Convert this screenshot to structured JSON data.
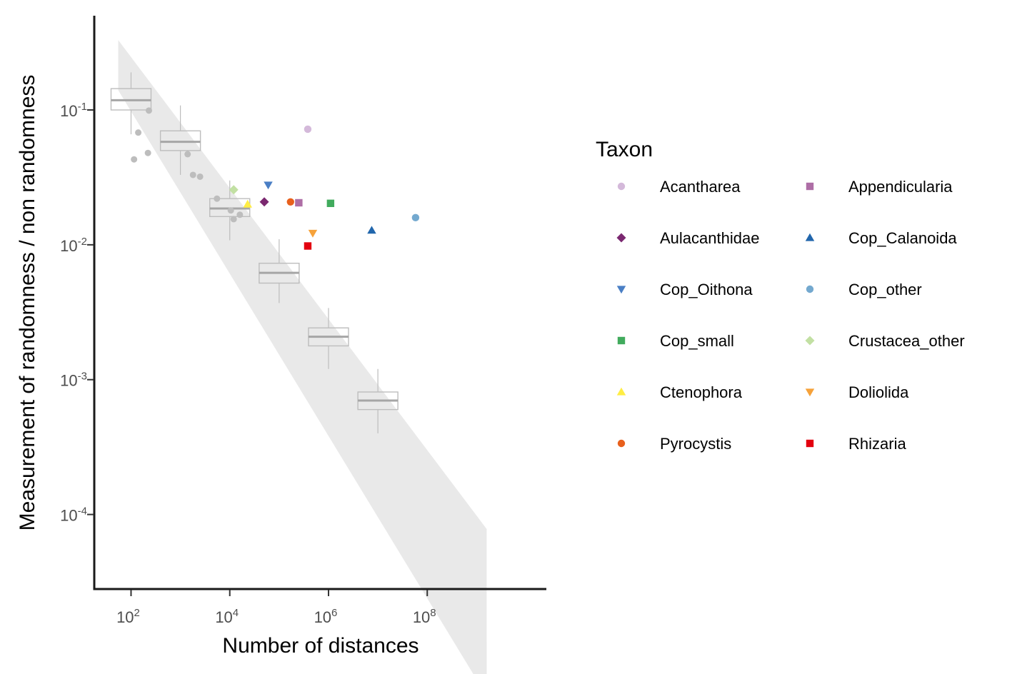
{
  "chart_data": {
    "type": "scatter",
    "xlabel": "Number of distances",
    "ylabel": "Measurement of randomness / non randomness",
    "x_scale": "log10",
    "y_scale": "log10",
    "xlim": [
      18,
      25000000000
    ],
    "ylim": [
      2.8e-05,
      0.5
    ],
    "x_ticks": [
      {
        "value": 100,
        "base": "10",
        "exp": "2"
      },
      {
        "value": 10000,
        "base": "10",
        "exp": "4"
      },
      {
        "value": 1000000,
        "base": "10",
        "exp": "6"
      },
      {
        "value": 100000000,
        "base": "10",
        "exp": "8"
      }
    ],
    "y_ticks": [
      {
        "value": 0.1,
        "base": "10",
        "exp": "-1"
      },
      {
        "value": 0.01,
        "base": "10",
        "exp": "-2"
      },
      {
        "value": 0.001,
        "base": "10",
        "exp": "-3"
      },
      {
        "value": 0.0001,
        "base": "10",
        "exp": "-4"
      }
    ],
    "grid": false,
    "ribbon": {
      "color": "#e5e5e5",
      "x": [
        55,
        1600000000
      ],
      "upper": [
        0.33,
        7.8e-05
      ],
      "lower": [
        0.14,
        4.5e-06
      ]
    },
    "boxplots": {
      "color": "#bdbdbd",
      "median_color": "#a6a6a6",
      "boxes": [
        {
          "x": 100,
          "whisker_low": 0.066,
          "q1": 0.1,
          "median": 0.118,
          "q3": 0.144,
          "whisker_high": 0.19
        },
        {
          "x": 1000,
          "whisker_low": 0.033,
          "q1": 0.05,
          "median": 0.058,
          "q3": 0.07,
          "whisker_high": 0.108
        },
        {
          "x": 10000,
          "whisker_low": 0.0108,
          "q1": 0.0162,
          "median": 0.0186,
          "q3": 0.022,
          "whisker_high": 0.03
        },
        {
          "x": 100000,
          "whisker_low": 0.0037,
          "q1": 0.0052,
          "median": 0.0062,
          "q3": 0.0073,
          "whisker_high": 0.011
        },
        {
          "x": 1000000,
          "whisker_low": 0.0012,
          "q1": 0.00178,
          "median": 0.00208,
          "q3": 0.00242,
          "whisker_high": 0.0034
        },
        {
          "x": 10000000,
          "whisker_low": 0.0004,
          "q1": 0.0006,
          "median": 0.0007,
          "q3": 0.00081,
          "whisker_high": 0.0012
        }
      ]
    },
    "grey_points": {
      "color": "#bdbdbd",
      "points": [
        {
          "x": 230,
          "y": 0.099
        },
        {
          "x": 140,
          "y": 0.068
        },
        {
          "x": 220,
          "y": 0.048
        },
        {
          "x": 115,
          "y": 0.043
        },
        {
          "x": 1400,
          "y": 0.047
        },
        {
          "x": 1800,
          "y": 0.033
        },
        {
          "x": 2500,
          "y": 0.032
        },
        {
          "x": 5500,
          "y": 0.022
        },
        {
          "x": 10500,
          "y": 0.018
        },
        {
          "x": 16000,
          "y": 0.0167
        },
        {
          "x": 12000,
          "y": 0.0155
        }
      ]
    },
    "series": [
      {
        "name": "Acantharea",
        "shape": "circle",
        "color": "#d4b9da",
        "x": 380000,
        "y": 0.072
      },
      {
        "name": "Appendicularia",
        "shape": "square",
        "color": "#ae6ea6",
        "x": 250000,
        "y": 0.0205
      },
      {
        "name": "Aulacanthidae",
        "shape": "diamond",
        "color": "#7b2870",
        "x": 50000,
        "y": 0.0208
      },
      {
        "name": "Cop_Calanoida",
        "shape": "triangle-up",
        "color": "#2166ac",
        "x": 7500000,
        "y": 0.0128
      },
      {
        "name": "Cop_Oithona",
        "shape": "triangle-down",
        "color": "#4a7fc5",
        "x": 60000,
        "y": 0.0278
      },
      {
        "name": "Cop_other",
        "shape": "circle",
        "color": "#74a9cf",
        "x": 58000000,
        "y": 0.0159
      },
      {
        "name": "Cop_small",
        "shape": "square",
        "color": "#41ab5d",
        "x": 1100000,
        "y": 0.0203
      },
      {
        "name": "Crustacea_other",
        "shape": "diamond",
        "color": "#c2e0a3",
        "x": 12000,
        "y": 0.0256
      },
      {
        "name": "Ctenophora",
        "shape": "triangle-up",
        "color": "#ffed44",
        "x": 23000,
        "y": 0.02
      },
      {
        "name": "Doliolida",
        "shape": "triangle-down",
        "color": "#f6a23a",
        "x": 480000,
        "y": 0.0122
      },
      {
        "name": "Pyrocystis",
        "shape": "circle",
        "color": "#e8601c",
        "x": 170000,
        "y": 0.0208
      },
      {
        "name": "Rhizaria",
        "shape": "square",
        "color": "#e3000f",
        "x": 380000,
        "y": 0.0098
      }
    ],
    "legend": {
      "title": "Taxon",
      "placement": "right",
      "columns": 2
    }
  }
}
